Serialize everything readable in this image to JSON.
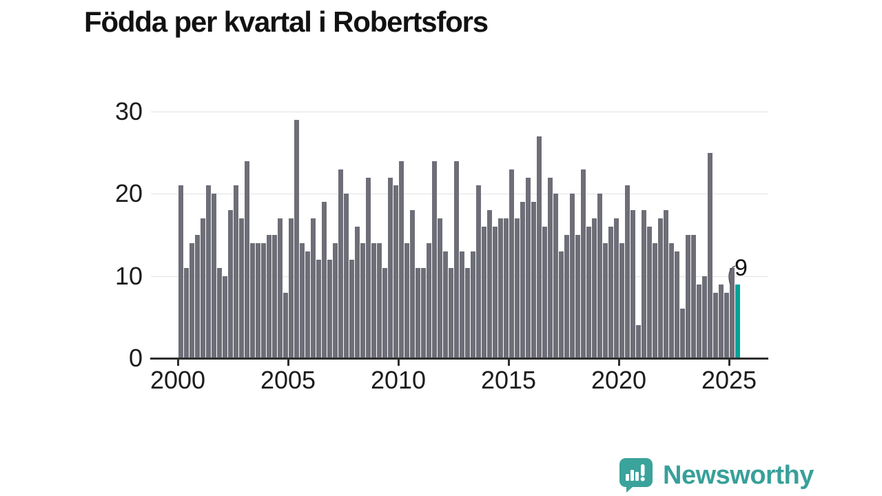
{
  "title": "Födda per kvartal i Robertsfors",
  "y_axis": {
    "ticks": [
      0,
      10,
      20,
      30
    ]
  },
  "x_axis": {
    "ticks": [
      "2000",
      "2005",
      "2010",
      "2015",
      "2020",
      "2025"
    ]
  },
  "annotation": {
    "label": "9"
  },
  "logo": {
    "text": "Newsworthy"
  },
  "colors": {
    "bar": "#6e6e78",
    "highlight": "#00a398",
    "grid": "#e2e2e2",
    "axis": "#2e2e2e",
    "title": "#121212",
    "logo_teal": "#38a099"
  },
  "chart_data": {
    "type": "bar",
    "title": "Födda per kvartal i Robertsfors",
    "start_period": "2000-Q1",
    "end_period": "2025-Q2",
    "x_unit": "quarter",
    "values": [
      21,
      11,
      14,
      15,
      17,
      21,
      20,
      11,
      10,
      18,
      21,
      17,
      24,
      14,
      14,
      14,
      15,
      15,
      17,
      8,
      17,
      29,
      14,
      13,
      17,
      12,
      19,
      12,
      14,
      23,
      20,
      12,
      16,
      14,
      22,
      14,
      14,
      11,
      22,
      21,
      24,
      14,
      18,
      11,
      11,
      14,
      24,
      17,
      13,
      11,
      24,
      13,
      11,
      13,
      21,
      16,
      18,
      16,
      17,
      17,
      23,
      17,
      19,
      22,
      19,
      27,
      16,
      22,
      20,
      13,
      15,
      20,
      15,
      23,
      16,
      17,
      20,
      14,
      16,
      17,
      14,
      21,
      18,
      4,
      18,
      16,
      14,
      17,
      18,
      14,
      13,
      6,
      15,
      15,
      9,
      10,
      25,
      8,
      9,
      8,
      11,
      9
    ],
    "highlight_last": true,
    "last_value_label": "9",
    "ylim": [
      0,
      30
    ],
    "yticks": [
      0,
      10,
      20,
      30
    ],
    "xticks_years": [
      2000,
      2005,
      2010,
      2015,
      2020,
      2025
    ],
    "grid": "horizontal",
    "legend": "none"
  }
}
